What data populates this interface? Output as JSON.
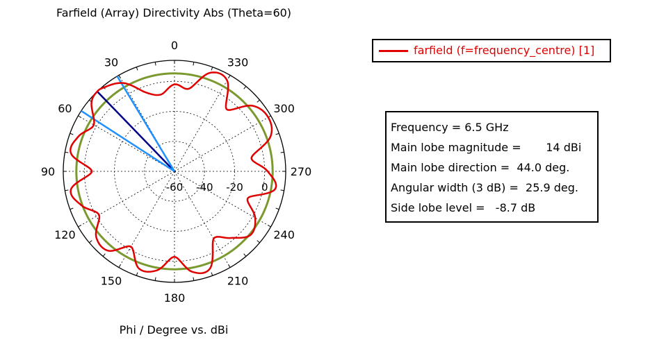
{
  "chart_data": {
    "type": "polar-line",
    "title": "Farfield (Array) Directivity Abs (Theta=60)",
    "xlabel": "Phi / Degree vs. dBi",
    "angular_ticks": [
      "0",
      "30",
      "60",
      "90",
      "120",
      "150",
      "180",
      "210",
      "240",
      "270",
      "300",
      "330"
    ],
    "radial_ticks": [
      "-60",
      "-40",
      "-20",
      "0"
    ],
    "radial_range_dbi": [
      -60,
      14
    ],
    "grid": true,
    "legend_position": "top-right",
    "series": [
      {
        "name": "farfield (f=frequency_centre) [1]",
        "color": "#e00000",
        "phi_deg": [
          0,
          10,
          20,
          30,
          40,
          44,
          50,
          60,
          70,
          80,
          90,
          100,
          110,
          120,
          130,
          140,
          150,
          160,
          170,
          180,
          190,
          200,
          210,
          220,
          230,
          240,
          250,
          260,
          270,
          280,
          290,
          300,
          310,
          320,
          330,
          340,
          350
        ],
        "dbi": [
          -2,
          -8,
          -4,
          8,
          13,
          14,
          12,
          2,
          8,
          10,
          -5,
          10,
          6,
          -2,
          8,
          9,
          -2,
          9,
          7,
          -3,
          8,
          9,
          -8,
          -2,
          6,
          2,
          -8,
          8,
          2,
          -8,
          8,
          12,
          8,
          -6,
          10,
          10,
          -4
        ]
      }
    ],
    "markers": [
      {
        "name": "main lobe direction",
        "phi_deg": 44.0,
        "color": "#00008b"
      },
      {
        "name": "3 dB beamwidth edge",
        "phi_deg": 31.0,
        "color": "#1e90ff"
      },
      {
        "name": "3 dB beamwidth edge",
        "phi_deg": 57.0,
        "color": "#1e90ff"
      }
    ],
    "reference_circle": {
      "dbi": 5.3,
      "color": "#7a9a30",
      "meaning": "side lobe level"
    }
  },
  "legend": {
    "entry_label": "farfield (f=frequency_centre) [1]"
  },
  "info_box": {
    "rows": [
      "Frequency = 6.5 GHz",
      "Main lobe magnitude =       14 dBi",
      "Main lobe direction =  44.0 deg.",
      "Angular width (3 dB) =  25.9 deg.",
      "Side lobe level =   -8.7 dB"
    ]
  }
}
